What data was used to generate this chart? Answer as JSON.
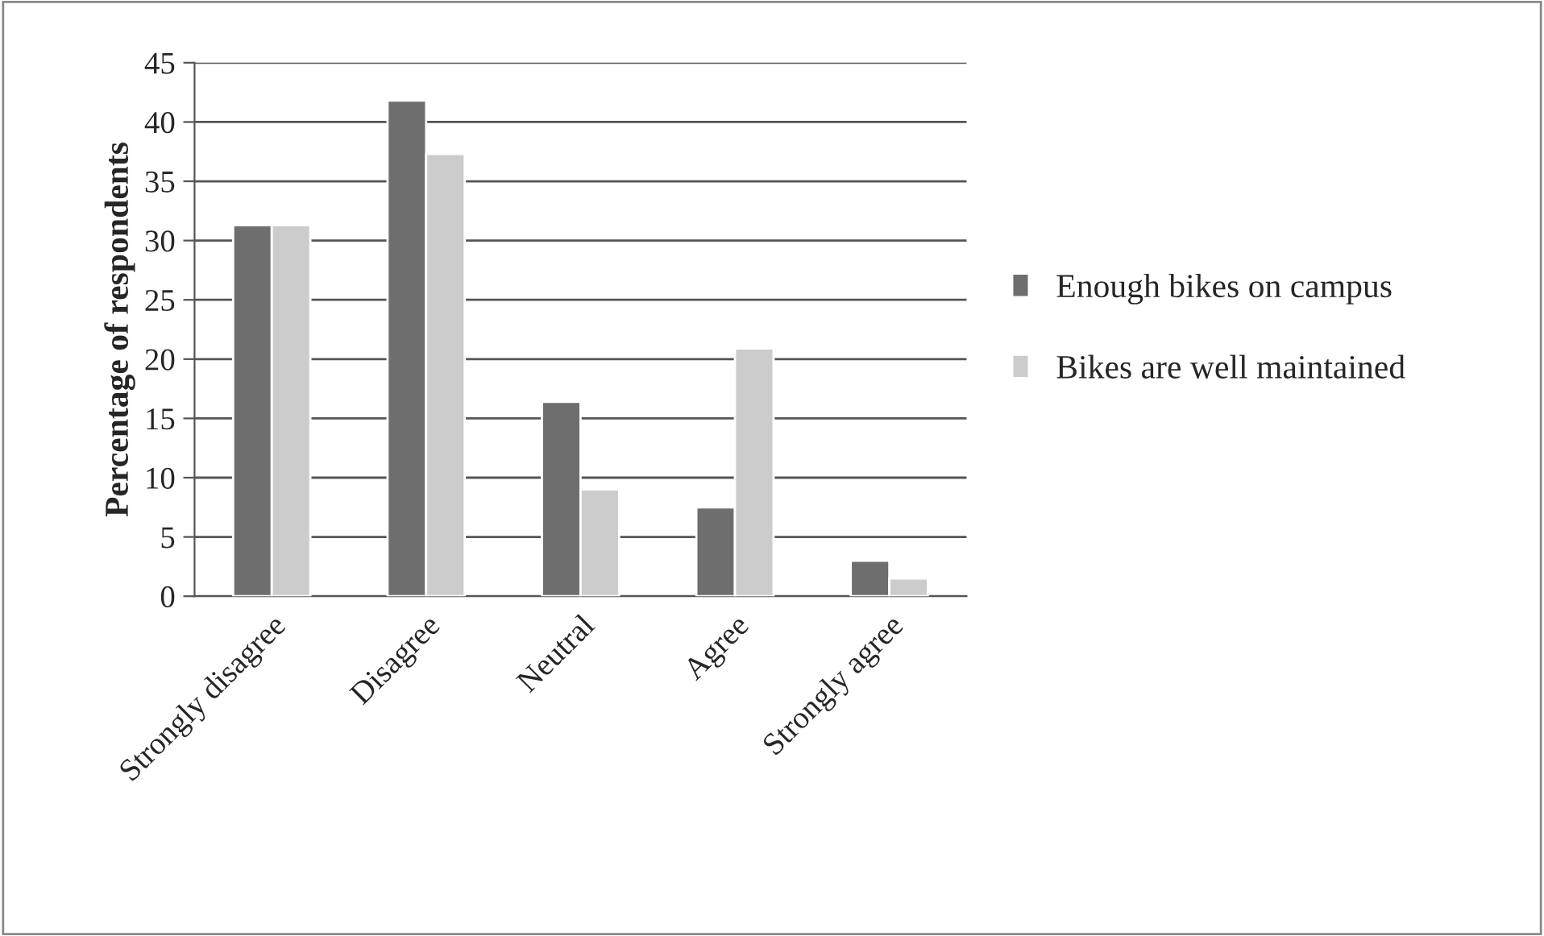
{
  "chart_data": {
    "type": "bar",
    "ylabel": "Percentage of respondents",
    "categories": [
      "Strongly disagree",
      "Disagree",
      "Neutral",
      "Agree",
      "Strongly agree"
    ],
    "series": [
      {
        "name": "Enough bikes on campus",
        "color": "#6e6e6e",
        "values": [
          31.3,
          41.8,
          16.4,
          7.5,
          3.0
        ]
      },
      {
        "name": "Bikes are well maintained",
        "color": "#cccccc",
        "values": [
          31.3,
          37.3,
          9.0,
          20.9,
          1.5
        ]
      }
    ],
    "ylim": [
      0,
      45
    ],
    "yticks": [
      0,
      5,
      10,
      15,
      20,
      25,
      30,
      35,
      40,
      45
    ],
    "grid": "y",
    "legend": "right"
  }
}
